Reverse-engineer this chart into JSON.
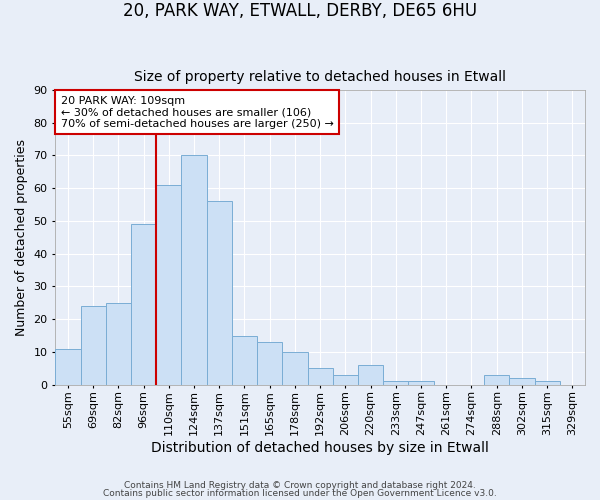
{
  "title1": "20, PARK WAY, ETWALL, DERBY, DE65 6HU",
  "title2": "Size of property relative to detached houses in Etwall",
  "xlabel": "Distribution of detached houses by size in Etwall",
  "ylabel": "Number of detached properties",
  "footer1": "Contains HM Land Registry data © Crown copyright and database right 2024.",
  "footer2": "Contains public sector information licensed under the Open Government Licence v3.0.",
  "bin_labels": [
    "55sqm",
    "69sqm",
    "82sqm",
    "96sqm",
    "110sqm",
    "124sqm",
    "137sqm",
    "151sqm",
    "165sqm",
    "178sqm",
    "192sqm",
    "206sqm",
    "220sqm",
    "233sqm",
    "247sqm",
    "261sqm",
    "274sqm",
    "288sqm",
    "302sqm",
    "315sqm",
    "329sqm"
  ],
  "bar_values": [
    11,
    24,
    25,
    49,
    61,
    70,
    56,
    15,
    13,
    10,
    5,
    3,
    6,
    1,
    1,
    0,
    0,
    3,
    2,
    1,
    0
  ],
  "bar_color": "#cce0f5",
  "bar_edge_color": "#7aadd4",
  "vline_color": "#cc0000",
  "annotation_text": "20 PARK WAY: 109sqm\n← 30% of detached houses are smaller (106)\n70% of semi-detached houses are larger (250) →",
  "annotation_box_color": "#ffffff",
  "annotation_box_edge": "#cc0000",
  "ylim": [
    0,
    90
  ],
  "yticks": [
    0,
    10,
    20,
    30,
    40,
    50,
    60,
    70,
    80,
    90
  ],
  "bg_color": "#e8eef8",
  "title1_fontsize": 12,
  "title2_fontsize": 10,
  "xlabel_fontsize": 10,
  "ylabel_fontsize": 9,
  "tick_fontsize": 8,
  "annot_fontsize": 8
}
